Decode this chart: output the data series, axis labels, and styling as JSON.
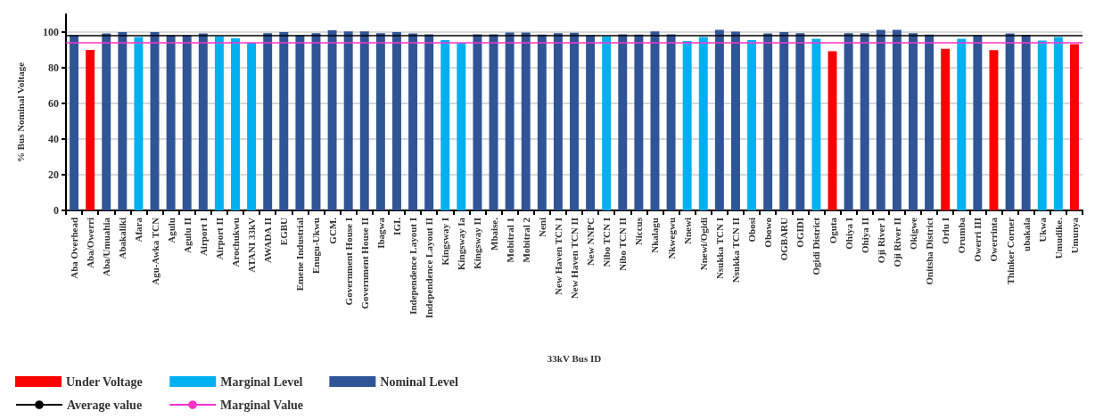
{
  "chart_data": {
    "type": "bar",
    "stacked": true,
    "xlabel": "33kV Bus ID",
    "ylabel": "% Bus Nominal Voltage",
    "categories": [
      "Aba Overhead",
      "Aba/Owerri",
      "Aba/Umuahia",
      "Abakaliki",
      "Afara",
      "Agu-Awka TCN",
      "Agulu",
      "Agulu II",
      "Airport I",
      "Airport II",
      "Arochukwu",
      "ATANI 33kV",
      "AWADA II",
      "EGBU",
      "Emene Industrial",
      "Enugu-Ukwu",
      "GCM.",
      "Government House I",
      "Government House II",
      "Ibagwa",
      "IGI.",
      "Independence Layout I",
      "Independence Layout II",
      "Kingsway I",
      "Kingsway Ia",
      "Kingsway II",
      "Mbaise.",
      "Mobitral 1",
      "Mobitral 2",
      "Neni",
      "New Haven TCN I",
      "New Haven TCN II",
      "New NNPC",
      "Nibo TCN I",
      "Nibo TCN II",
      "Niccus",
      "Nkalagu",
      "Nkwegwu",
      "Nnewi",
      "Nnewi/Ogidi",
      "Nsukka TCN I",
      "Nsukka TCN II",
      "Obosi",
      "Obowo",
      "OGBARU",
      "OGIDI",
      "Ogidi District",
      "Oguta",
      "Ohiya I",
      "Ohiya II",
      "Oji River I",
      "Oji River II",
      "Okigwe",
      "Onitsha District",
      "Orlu I",
      "Orumba",
      "Owerri III",
      "Owerrinta",
      "Thinker Corner",
      "ubakala",
      "Ukwa",
      "Umudike.",
      "Umunya"
    ],
    "series": [
      {
        "name": "Under Voltage",
        "color": "#ff0000",
        "values": [
          null,
          90,
          null,
          null,
          null,
          null,
          null,
          null,
          null,
          null,
          null,
          null,
          null,
          null,
          null,
          null,
          null,
          null,
          null,
          null,
          null,
          null,
          null,
          null,
          null,
          null,
          null,
          null,
          null,
          null,
          null,
          null,
          null,
          null,
          null,
          null,
          null,
          null,
          null,
          null,
          null,
          null,
          null,
          null,
          null,
          null,
          null,
          89.2,
          null,
          null,
          null,
          null,
          null,
          null,
          90.6,
          null,
          null,
          89.9,
          null,
          null,
          null,
          null,
          93.2
        ]
      },
      {
        "name": "Marginal Level",
        "color": "#00b0f0",
        "values": [
          null,
          null,
          null,
          null,
          97.3,
          null,
          null,
          null,
          null,
          97.5,
          96.5,
          94,
          null,
          null,
          null,
          null,
          null,
          null,
          null,
          null,
          null,
          null,
          null,
          95.5,
          93.9,
          null,
          null,
          null,
          null,
          null,
          null,
          null,
          null,
          97.6,
          null,
          null,
          null,
          null,
          95,
          97.2,
          null,
          null,
          95.5,
          null,
          null,
          null,
          96.3,
          null,
          null,
          null,
          null,
          null,
          null,
          null,
          null,
          96.3,
          null,
          null,
          null,
          null,
          95.3,
          97.3,
          null
        ]
      },
      {
        "name": "Nominal Level",
        "color": "#2f5597",
        "values": [
          98.3,
          null,
          99.3,
          100,
          null,
          100,
          98.3,
          98.3,
          99.2,
          null,
          null,
          null,
          99.4,
          100,
          98.3,
          99.4,
          101,
          100.4,
          100.4,
          99.4,
          100,
          99.3,
          98.8,
          null,
          null,
          98.8,
          98.8,
          99.8,
          99.8,
          98.6,
          99.4,
          99.6,
          98.2,
          null,
          98.8,
          98.6,
          100.4,
          98.8,
          null,
          null,
          101.3,
          100.2,
          null,
          99.3,
          100,
          99.4,
          null,
          null,
          99.4,
          99.4,
          101.3,
          101.3,
          99.4,
          98.6,
          null,
          null,
          98.2,
          null,
          99.2,
          98.5,
          null,
          null,
          null
        ]
      }
    ],
    "ref_lines": [
      {
        "axis": "y",
        "value": 98,
        "label": "Average value",
        "color": "#000000"
      },
      {
        "axis": "y",
        "value": 94,
        "label": "Marginal Value",
        "color": "#ff33cc"
      }
    ],
    "ylim": [
      0,
      110
    ],
    "yticks": [
      0,
      20,
      40,
      60,
      80,
      100
    ],
    "grid": "y",
    "legend": "bottom left"
  }
}
